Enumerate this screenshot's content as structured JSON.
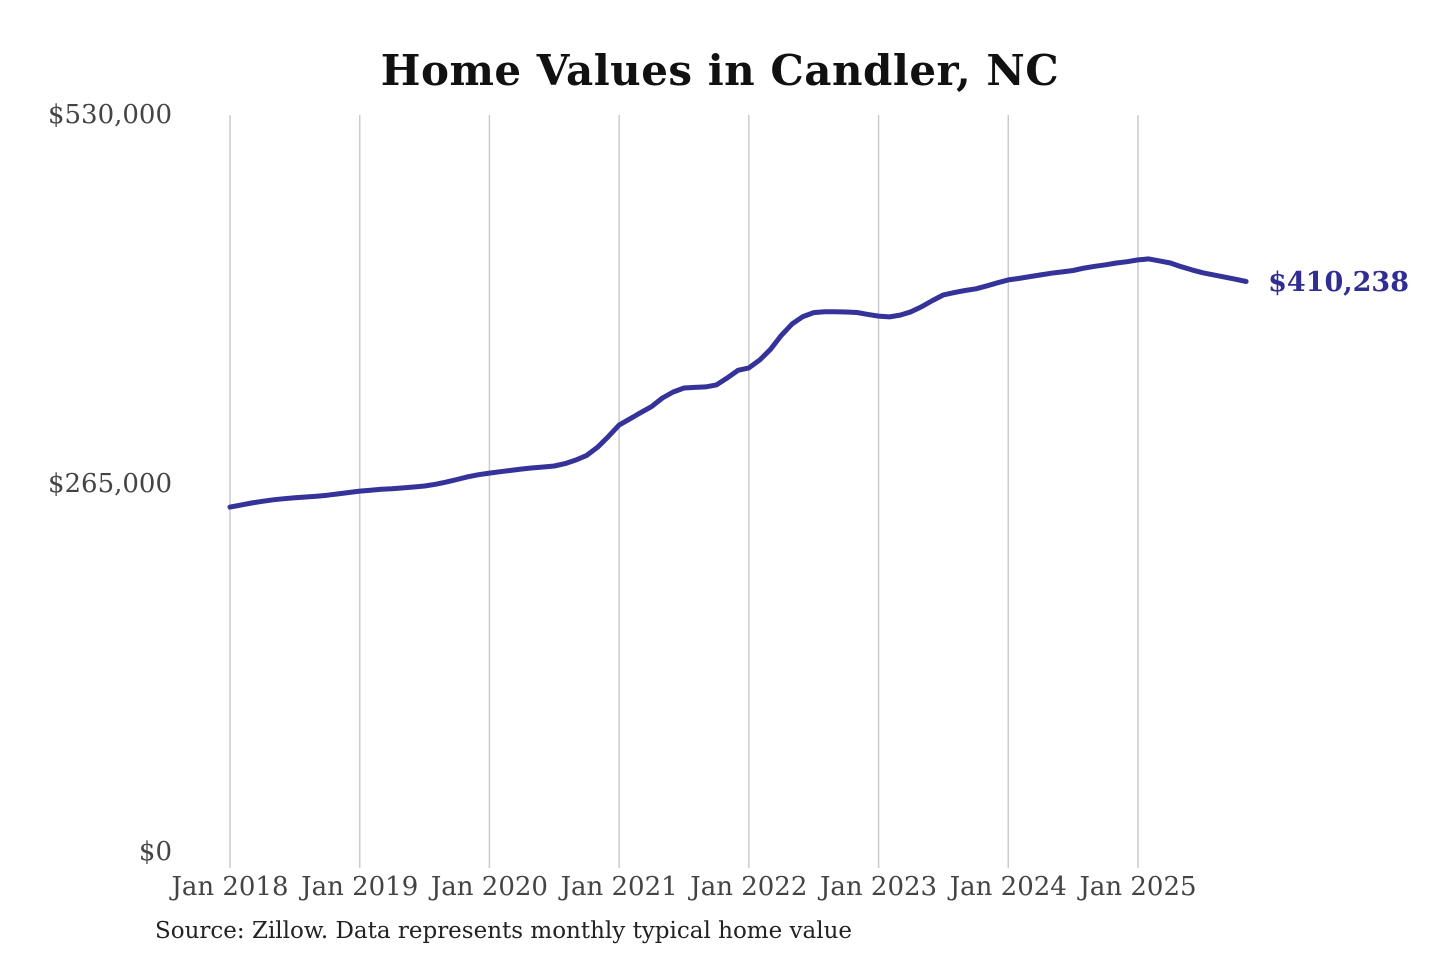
{
  "title": "Home Values in Candler, NC",
  "source_note": "Source: Zillow. Data represents monthly typical home value",
  "end_label": "$410,238",
  "colors": {
    "line": "#35329a",
    "end_label": "#312e93",
    "grid": "#cccccc",
    "axis_text": "#444444",
    "title_text": "#111111",
    "source_text": "#222222",
    "background": "#ffffff"
  },
  "y_axis": {
    "ticks": [
      {
        "label": "$0",
        "value": 0
      },
      {
        "label": "$265,000",
        "value": 265000
      },
      {
        "label": "$530,000",
        "value": 530000
      }
    ]
  },
  "x_axis": {
    "ticks": [
      "Jan 2018",
      "Jan 2019",
      "Jan 2020",
      "Jan 2021",
      "Jan 2022",
      "Jan 2023",
      "Jan 2024",
      "Jan 2025"
    ]
  },
  "chart_data": {
    "type": "line",
    "title": "Home Values in Candler, NC",
    "series_name": "Typical home value (USD)",
    "unit": "USD",
    "ylim": [
      0,
      530000
    ],
    "grid": "vertical-only",
    "legend": "none",
    "final_value": 410238,
    "final_value_label": "$410,238",
    "x_start": "2018-01",
    "x_end": "2025-11",
    "x_interval": "monthly",
    "x": [
      "2018-01",
      "2018-02",
      "2018-03",
      "2018-04",
      "2018-05",
      "2018-06",
      "2018-07",
      "2018-08",
      "2018-09",
      "2018-10",
      "2018-11",
      "2018-12",
      "2019-01",
      "2019-02",
      "2019-03",
      "2019-04",
      "2019-05",
      "2019-06",
      "2019-07",
      "2019-08",
      "2019-09",
      "2019-10",
      "2019-11",
      "2019-12",
      "2020-01",
      "2020-02",
      "2020-03",
      "2020-04",
      "2020-05",
      "2020-06",
      "2020-07",
      "2020-08",
      "2020-09",
      "2020-10",
      "2020-11",
      "2020-12",
      "2021-01",
      "2021-02",
      "2021-03",
      "2021-04",
      "2021-05",
      "2021-06",
      "2021-07",
      "2021-08",
      "2021-09",
      "2021-10",
      "2021-11",
      "2021-12",
      "2022-01",
      "2022-02",
      "2022-03",
      "2022-04",
      "2022-05",
      "2022-06",
      "2022-07",
      "2022-08",
      "2022-09",
      "2022-10",
      "2022-11",
      "2022-12",
      "2023-01",
      "2023-02",
      "2023-03",
      "2023-04",
      "2023-05",
      "2023-06",
      "2023-07",
      "2023-08",
      "2023-09",
      "2023-10",
      "2023-11",
      "2023-12",
      "2024-01",
      "2024-02",
      "2024-03",
      "2024-04",
      "2024-05",
      "2024-06",
      "2024-07",
      "2024-08",
      "2024-09",
      "2024-10",
      "2024-11",
      "2024-12",
      "2025-01",
      "2025-02",
      "2025-03",
      "2025-04",
      "2025-05",
      "2025-06",
      "2025-07",
      "2025-08",
      "2025-09",
      "2025-10",
      "2025-11"
    ],
    "values": [
      248000,
      249500,
      251000,
      252200,
      253300,
      254100,
      254700,
      255300,
      255900,
      256600,
      257500,
      258500,
      259500,
      260200,
      260800,
      261200,
      261800,
      262500,
      263200,
      264400,
      266000,
      267900,
      269800,
      271300,
      272500,
      273500,
      274400,
      275400,
      276200,
      276900,
      277600,
      279300,
      281900,
      285200,
      291000,
      298700,
      307000,
      311500,
      316000,
      320300,
      326500,
      330800,
      333700,
      334100,
      334500,
      335900,
      340900,
      346400,
      348100,
      353800,
      361500,
      371500,
      379800,
      385000,
      387900,
      388500,
      388500,
      388300,
      388000,
      386600,
      385400,
      384800,
      386100,
      388500,
      392200,
      396600,
      400600,
      402300,
      403800,
      405000,
      407100,
      409300,
      411400,
      412500,
      413800,
      415000,
      416200,
      417200,
      418200,
      419900,
      421200,
      422300,
      423600,
      424500,
      425800,
      426500,
      425100,
      423600,
      420900,
      418600,
      416500,
      415000,
      413400,
      411900,
      410238
    ]
  }
}
